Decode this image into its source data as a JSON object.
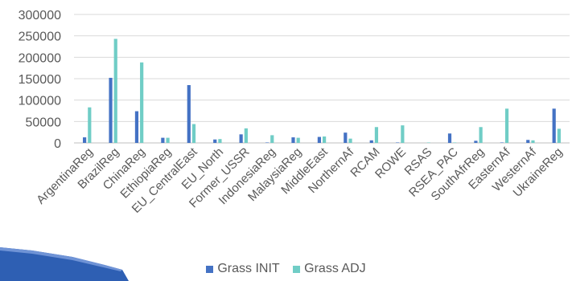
{
  "chart_data": {
    "type": "bar",
    "title": "",
    "xlabel": "",
    "ylabel": "",
    "ylim": [
      0,
      300000
    ],
    "yticks": [
      0,
      50000,
      100000,
      150000,
      200000,
      250000,
      300000
    ],
    "ytick_labels": [
      "0",
      "50000",
      "100000",
      "150000",
      "200000",
      "250000",
      "300000"
    ],
    "grid": true,
    "legend_position": "bottom",
    "categories": [
      "ArgentinaReg",
      "BrazilReg",
      "ChinaReg",
      "EthiopiaReg",
      "EU_CentralEast",
      "EU_North",
      "Former_USSR",
      "IndonesiaReg",
      "MalaysiaReg",
      "MiddleEast",
      "NorthernAf",
      "RCAM",
      "ROWE",
      "RSAS",
      "RSEA_PAC",
      "SouthAfrReg",
      "EasternAf",
      "WesternAf",
      "UkraineReg"
    ],
    "series": [
      {
        "name": "Grass INIT",
        "color": "#4472C4",
        "values": [
          13000,
          152000,
          74000,
          12000,
          135000,
          8000,
          20000,
          1000,
          13000,
          14000,
          24000,
          6000,
          1000,
          0,
          22000,
          5000,
          1000,
          7000,
          80000
        ]
      },
      {
        "name": "Grass ADJ",
        "color": "#70CDC6",
        "values": [
          83000,
          243000,
          188000,
          12000,
          44000,
          9000,
          34000,
          18000,
          12000,
          15000,
          10000,
          37000,
          41000,
          1000,
          1000,
          37000,
          80000,
          6000,
          33000
        ]
      }
    ]
  }
}
